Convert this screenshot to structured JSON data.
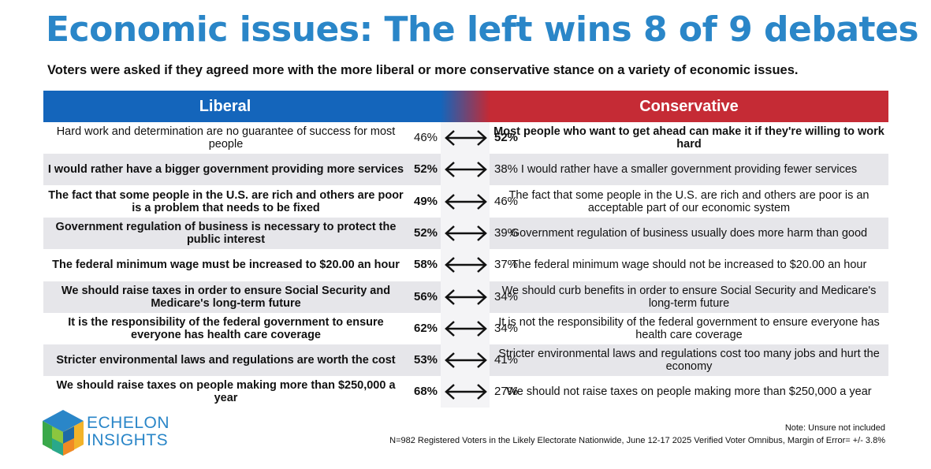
{
  "title": "Economic issues: The left wins 8 of 9 debates",
  "subtitle": "Voters were asked if they agreed more with the more liberal or more conservative stance on a variety of economic issues.",
  "headers": {
    "liberal": "Liberal",
    "conservative": "Conservative"
  },
  "colors": {
    "title": "#2a86c8",
    "liberal": "#1465bb",
    "conservative": "#c52b35",
    "shade": "#e6e6ea"
  },
  "chart_data": {
    "type": "table",
    "title": "Economic issues: The left wins 8 of 9 debates",
    "columns": [
      "Liberal",
      "Liberal %",
      "Conservative %",
      "Conservative"
    ],
    "rows": [
      {
        "liberal": "Hard work and determination are no guarantee of success for most people",
        "liberal_pct": "46%",
        "conservative_pct": "52%",
        "conservative": "Most people who want to get ahead can make it if they're willing to work hard",
        "winner": "conservative"
      },
      {
        "liberal": "I would rather have a bigger government providing more services",
        "liberal_pct": "52%",
        "conservative_pct": "38%",
        "conservative": "I would rather have a smaller government providing fewer services",
        "winner": "liberal"
      },
      {
        "liberal": "The fact that some people in the U.S. are rich and others are poor is a problem that needs to be fixed",
        "liberal_pct": "49%",
        "conservative_pct": "46%",
        "conservative": "The fact that some people in the U.S. are rich and others are poor is an acceptable part of our economic system",
        "winner": "liberal"
      },
      {
        "liberal": "Government regulation of business is necessary to protect the public interest",
        "liberal_pct": "52%",
        "conservative_pct": "39%",
        "conservative": "Government regulation of business usually does more harm than good",
        "winner": "liberal"
      },
      {
        "liberal": "The federal minimum wage must be increased to $20.00 an hour",
        "liberal_pct": "58%",
        "conservative_pct": "37%",
        "conservative": "The federal minimum wage should not be increased to $20.00 an hour",
        "winner": "liberal"
      },
      {
        "liberal": "We should raise taxes in order to ensure Social Security and Medicare's long-term future",
        "liberal_pct": "56%",
        "conservative_pct": "34%",
        "conservative": "We should curb benefits in order to ensure Social Security and Medicare's long-term future",
        "winner": "liberal"
      },
      {
        "liberal": "It is the responsibility of the federal government to ensure everyone has health care coverage",
        "liberal_pct": "62%",
        "conservative_pct": "34%",
        "conservative": "It is not the responsibility of the federal government to ensure everyone has health care coverage",
        "winner": "liberal"
      },
      {
        "liberal": "Stricter environmental laws and regulations are worth the cost",
        "liberal_pct": "53%",
        "conservative_pct": "41%",
        "conservative": "Stricter environmental laws and regulations cost too many jobs and hurt the economy",
        "winner": "liberal"
      },
      {
        "liberal": "We should raise taxes on people making more than $250,000 a year",
        "liberal_pct": "68%",
        "conservative_pct": "27%",
        "conservative": "We should not raise taxes on people making more than $250,000 a year",
        "winner": "liberal"
      }
    ]
  },
  "logo": {
    "line1": "ECHELON",
    "line2": "INSIGHTS"
  },
  "note": "Note: Unsure not included",
  "source": "N=982 Registered Voters in the Likely Electorate Nationwide, June 12-17 2025 Verified Voter Omnibus, Margin of Error= +/- 3.8%"
}
